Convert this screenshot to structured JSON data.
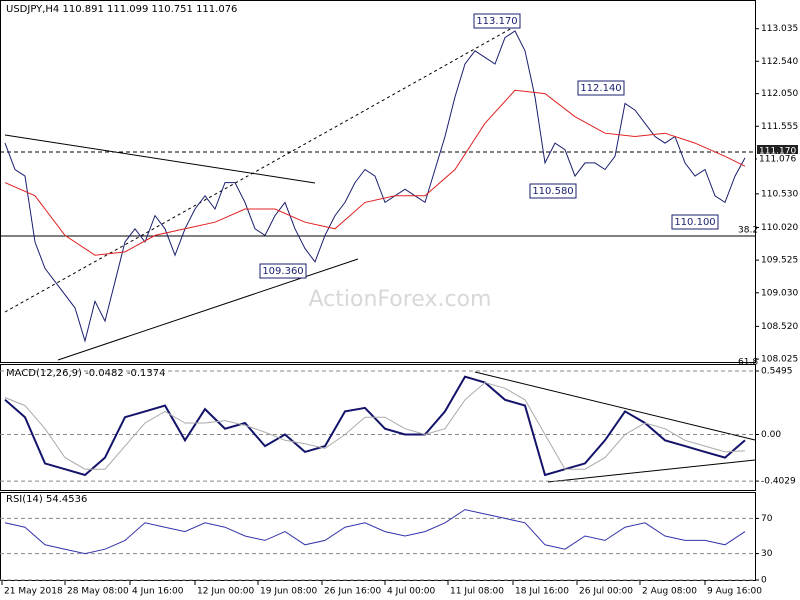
{
  "chart_data": [
    {
      "type": "line",
      "title": "USDJPY,H4 110.891 111.099 110.751 111.076",
      "watermark": "ActionForex.com",
      "xlim": [
        -0.5,
        75
      ],
      "ylim": [
        107.98,
        113.47
      ],
      "xticks": [
        {
          "value": -0.3,
          "label": "21 May 2018"
        },
        {
          "value": 6,
          "label": "28 May 08:00"
        },
        {
          "value": 12.5,
          "label": "4 Jun 16:00"
        },
        {
          "value": 19,
          "label": "12 Jun 00:00"
        },
        {
          "value": 25.3,
          "label": "19 Jun 08:00"
        },
        {
          "value": 31.7,
          "label": "26 Jun 16:00"
        },
        {
          "value": 38,
          "label": "4 Jul 00:00"
        },
        {
          "value": 44.3,
          "label": "11 Jul 08:00"
        },
        {
          "value": 50.8,
          "label": "18 Jul 16:00"
        },
        {
          "value": 57.2,
          "label": "26 Jul 00:00"
        },
        {
          "value": 63.5,
          "label": "2 Aug 08:00"
        },
        {
          "value": 70,
          "label": "9 Aug 16:00"
        }
      ],
      "yticks": [
        {
          "value": 113.035,
          "label": "113.035"
        },
        {
          "value": 112.54,
          "label": "112.540"
        },
        {
          "value": 112.05,
          "label": "112.050"
        },
        {
          "value": 111.555,
          "label": "111.555"
        },
        {
          "value": 111.06,
          "label": "111.060"
        },
        {
          "value": 110.53,
          "label": "110.530"
        },
        {
          "value": 110.02,
          "label": "110.020"
        },
        {
          "value": 109.525,
          "label": "109.525"
        },
        {
          "value": 109.03,
          "label": "109.030"
        },
        {
          "value": 108.52,
          "label": "108.520"
        },
        {
          "value": 108.025,
          "label": "108.025"
        }
      ],
      "annotations": [
        "113.170",
        "112.140",
        "110.580",
        "110.100",
        "109.360",
        "38.2",
        "61.8",
        "111.170",
        "111.076"
      ],
      "series": [
        {
          "color": "#1a1f6e",
          "x": [
            0,
            1,
            2,
            3,
            4,
            5,
            6,
            7,
            8,
            9,
            10,
            11,
            12,
            13,
            14,
            15,
            16,
            17,
            18,
            19,
            20,
            21,
            22,
            23,
            24,
            25,
            26,
            27,
            28,
            29,
            30,
            31,
            32,
            33,
            34,
            35,
            36,
            37,
            38,
            39,
            40,
            41,
            42,
            43,
            44,
            45,
            46,
            47,
            48,
            49,
            50,
            51,
            52,
            53,
            54,
            55,
            56,
            57,
            58,
            59,
            60,
            61,
            62,
            63,
            64,
            65,
            66,
            67,
            68,
            69,
            70,
            71,
            72,
            73,
            74
          ],
          "values": [
            111.3,
            110.9,
            110.8,
            109.8,
            109.4,
            109.2,
            109.0,
            108.8,
            108.3,
            108.9,
            108.6,
            109.2,
            109.8,
            110.0,
            109.8,
            110.2,
            110.0,
            109.6,
            110.0,
            110.3,
            110.5,
            110.3,
            110.7,
            110.7,
            110.4,
            110.0,
            109.9,
            110.2,
            110.4,
            110.0,
            109.7,
            109.5,
            109.9,
            110.2,
            110.4,
            110.7,
            110.9,
            110.8,
            110.4,
            110.5,
            110.6,
            110.5,
            110.4,
            110.9,
            111.4,
            112.0,
            112.5,
            112.7,
            112.6,
            112.5,
            112.9,
            113.0,
            112.7,
            112.0,
            111.0,
            111.3,
            111.2,
            110.8,
            111.0,
            111.0,
            110.9,
            111.1,
            111.9,
            111.8,
            111.6,
            111.4,
            111.3,
            111.4,
            111.0,
            110.8,
            110.9,
            110.5,
            110.4,
            110.8,
            111.076
          ]
        },
        {
          "color": "#e02020",
          "x": [
            0,
            3,
            6,
            9,
            12,
            15,
            18,
            21,
            24,
            27,
            30,
            33,
            36,
            39,
            42,
            45,
            48,
            51,
            54,
            57,
            60,
            63,
            66,
            69,
            72,
            74
          ],
          "values": [
            110.7,
            110.5,
            109.9,
            109.6,
            109.65,
            109.9,
            110.0,
            110.1,
            110.3,
            110.3,
            110.1,
            110.0,
            110.4,
            110.5,
            110.5,
            110.9,
            111.6,
            112.1,
            112.05,
            111.7,
            111.45,
            111.4,
            111.45,
            111.3,
            111.1,
            110.95
          ]
        }
      ]
    },
    {
      "type": "line",
      "title": "MACD(12,26,9) -0.0482 -0.1374",
      "xlim": [
        -0.5,
        75
      ],
      "ylim": [
        -0.48,
        0.61
      ],
      "yticks": [
        0.5495,
        {
          "value": 0,
          "label": "0.00"
        },
        -0.4029
      ],
      "series": [
        {
          "color": "#13136b",
          "x": [
            0,
            2,
            4,
            6,
            8,
            10,
            12,
            14,
            16,
            18,
            20,
            22,
            24,
            26,
            28,
            30,
            32,
            34,
            36,
            38,
            40,
            42,
            44,
            46,
            48,
            50,
            52,
            54,
            56,
            58,
            60,
            62,
            64,
            66,
            68,
            70,
            72,
            74
          ],
          "values": [
            0.3,
            0.15,
            -0.25,
            -0.3,
            -0.35,
            -0.2,
            0.15,
            0.2,
            0.25,
            -0.05,
            0.22,
            0.05,
            0.1,
            -0.1,
            0.0,
            -0.15,
            -0.1,
            0.2,
            0.23,
            0.05,
            0.0,
            0.0,
            0.2,
            0.5,
            0.45,
            0.3,
            0.25,
            -0.35,
            -0.3,
            -0.25,
            -0.05,
            0.2,
            0.1,
            -0.05,
            -0.1,
            -0.15,
            -0.2,
            -0.05
          ]
        },
        {
          "color": "#aaaaaa",
          "x": [
            0,
            2,
            4,
            6,
            8,
            10,
            12,
            14,
            16,
            18,
            20,
            22,
            24,
            26,
            28,
            30,
            32,
            34,
            36,
            38,
            40,
            42,
            44,
            46,
            48,
            50,
            52,
            54,
            56,
            58,
            60,
            62,
            64,
            66,
            68,
            70,
            72,
            74
          ],
          "values": [
            0.32,
            0.25,
            0.05,
            -0.2,
            -0.3,
            -0.3,
            -0.1,
            0.1,
            0.2,
            0.1,
            0.1,
            0.12,
            0.08,
            0.02,
            -0.05,
            -0.08,
            -0.12,
            0.0,
            0.15,
            0.15,
            0.05,
            0.0,
            0.05,
            0.3,
            0.45,
            0.4,
            0.3,
            0.0,
            -0.3,
            -0.3,
            -0.2,
            0.0,
            0.1,
            0.05,
            -0.05,
            -0.1,
            -0.15,
            -0.14
          ]
        }
      ]
    },
    {
      "type": "line",
      "title": "RSI(14) 54.4536",
      "xlim": [
        -0.5,
        75
      ],
      "ylim": [
        0,
        100
      ],
      "yticks": [
        70,
        30,
        0
      ],
      "series": [
        {
          "color": "#3333aa",
          "x": [
            0,
            2,
            4,
            6,
            8,
            10,
            12,
            14,
            16,
            18,
            20,
            22,
            24,
            26,
            28,
            30,
            32,
            34,
            36,
            38,
            40,
            42,
            44,
            46,
            48,
            50,
            52,
            54,
            56,
            58,
            60,
            62,
            64,
            66,
            68,
            70,
            72,
            74
          ],
          "values": [
            65,
            60,
            40,
            35,
            30,
            35,
            45,
            65,
            60,
            55,
            65,
            60,
            50,
            45,
            55,
            40,
            45,
            60,
            65,
            55,
            50,
            55,
            65,
            80,
            75,
            70,
            65,
            40,
            35,
            50,
            45,
            60,
            65,
            50,
            45,
            45,
            40,
            55
          ]
        }
      ]
    }
  ]
}
